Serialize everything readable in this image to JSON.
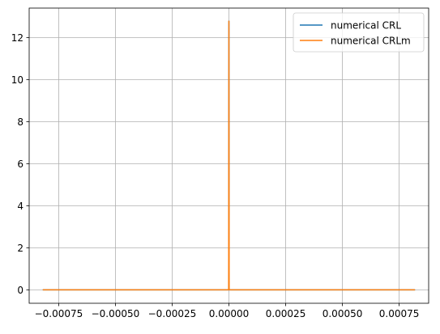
{
  "chart_data": {
    "type": "line",
    "title": "",
    "xlabel": "",
    "ylabel": "",
    "xlim": [
      -0.00088,
      0.00088
    ],
    "ylim": [
      -0.64,
      13.4
    ],
    "grid": true,
    "legend_position": "top-right",
    "x_ticks": [
      -0.00075,
      -0.0005,
      -0.00025,
      0.0,
      0.00025,
      0.0005,
      0.00075
    ],
    "x_tick_labels": [
      "−0.00075",
      "−0.00050",
      "−0.00025",
      "0.00000",
      "0.00025",
      "0.00050",
      "0.00075"
    ],
    "y_ticks": [
      0,
      2,
      4,
      6,
      8,
      10,
      12
    ],
    "y_tick_labels": [
      "0",
      "2",
      "4",
      "6",
      "8",
      "10",
      "12"
    ],
    "series": [
      {
        "name": "numerical CRL",
        "color": "#1f77b4",
        "points": [
          [
            -0.00082,
            0
          ],
          [
            -1e-06,
            0
          ],
          [
            0,
            12.8
          ],
          [
            1e-06,
            0
          ],
          [
            0.00082,
            0
          ]
        ]
      },
      {
        "name": "numerical CRLm",
        "color": "#ff7f0e",
        "points": [
          [
            -0.00082,
            0
          ],
          [
            -1e-06,
            0
          ],
          [
            0,
            12.8
          ],
          [
            1e-06,
            0
          ],
          [
            0.00082,
            0
          ]
        ]
      }
    ]
  }
}
